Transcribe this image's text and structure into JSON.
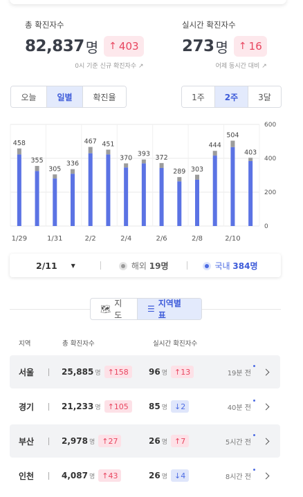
{
  "summary": {
    "total": {
      "label": "총 확진자수",
      "value": "82,837",
      "unit": "명",
      "delta": "403",
      "note": "0시 기준 신규 확진자수"
    },
    "realtime": {
      "label": "실시간 확진자수",
      "value": "273",
      "unit": "명",
      "delta": "16",
      "note": "어제 동시간 대비"
    }
  },
  "view_tabs": [
    "오늘",
    "일별",
    "확진율"
  ],
  "period_tabs": [
    "1주",
    "2주",
    "3달"
  ],
  "chart_data": {
    "type": "bar",
    "categories": [
      "1/29",
      "1/30",
      "1/31",
      "2/1",
      "2/2",
      "2/3",
      "2/4",
      "2/5",
      "2/6",
      "2/7",
      "2/8",
      "2/9",
      "2/10",
      "2/11"
    ],
    "x_tick_labels": [
      "1/29",
      "1/31",
      "2/2",
      "2/4",
      "2/6",
      "2/8",
      "2/10"
    ],
    "series": [
      {
        "name": "국내",
        "color": "#5b73e4",
        "values": [
          423,
          325,
          281,
          309,
          430,
          423,
          346,
          370,
          343,
          264,
          274,
          416,
          466,
          384
        ]
      },
      {
        "name": "해외",
        "color": "#9c9c9c",
        "values": [
          35,
          30,
          24,
          27,
          37,
          28,
          24,
          23,
          29,
          25,
          29,
          28,
          38,
          19
        ]
      }
    ],
    "data_labels": [
      458,
      355,
      305,
      336,
      467,
      451,
      370,
      393,
      372,
      289,
      303,
      444,
      504,
      403
    ],
    "y_ticks": [
      0,
      200,
      400,
      600
    ],
    "ylim": [
      0,
      600
    ],
    "stacked": true
  },
  "datebar": {
    "date": "2/11",
    "overseas_label": "해외",
    "overseas_value": "19명",
    "domestic_label": "국내",
    "domestic_value": "384명"
  },
  "map_tabs": {
    "map": "지도",
    "table": "지역별 표"
  },
  "table": {
    "headers": {
      "region": "지역",
      "total": "총 확진자수",
      "realtime": "실시간 확진자수"
    },
    "rows": [
      {
        "region": "서울",
        "total": "25,885",
        "total_delta": "158",
        "rt": "96",
        "rt_delta": "13",
        "rt_dir": "up",
        "ago": "19분 전"
      },
      {
        "region": "경기",
        "total": "21,233",
        "total_delta": "105",
        "rt": "85",
        "rt_delta": "2",
        "rt_dir": "down",
        "ago": "40분 전"
      },
      {
        "region": "부산",
        "total": "2,978",
        "total_delta": "27",
        "rt": "26",
        "rt_delta": "7",
        "rt_dir": "up",
        "ago": "5시간 전"
      },
      {
        "region": "인천",
        "total": "4,087",
        "total_delta": "43",
        "rt": "26",
        "rt_delta": "4",
        "rt_dir": "down",
        "ago": "8시간 전"
      }
    ],
    "unit": "명"
  }
}
